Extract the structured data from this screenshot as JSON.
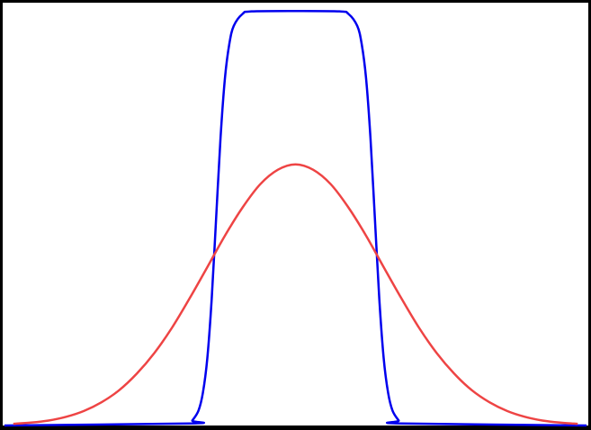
{
  "chart_data": {
    "type": "line",
    "title": "",
    "xlabel": "",
    "ylabel": "",
    "xlim": [
      -3.32,
      3.32
    ],
    "ylim": [
      0,
      1.02
    ],
    "grid": false,
    "axes_visible": false,
    "legend": "none",
    "series": [
      {
        "color": "#0000ee",
        "x": [
          -3.3,
          -1.2,
          -1.17,
          -1.1,
          -1.05,
          -1.0,
          -0.95,
          -0.9,
          -0.85,
          -0.8,
          -0.75,
          -0.7,
          -0.6,
          -0.5,
          0,
          0.5,
          0.6,
          0.7,
          0.75,
          0.8,
          0.85,
          0.9,
          0.95,
          1.0,
          1.05,
          1.1,
          1.17,
          1.2,
          3.3
        ],
        "y": [
          0,
          0.005,
          0.012,
          0.036,
          0.079,
          0.162,
          0.306,
          0.5,
          0.694,
          0.838,
          0.921,
          0.964,
          0.993,
          0.999,
          1.0,
          0.999,
          0.993,
          0.964,
          0.921,
          0.838,
          0.694,
          0.5,
          0.306,
          0.162,
          0.079,
          0.036,
          0.012,
          0.005,
          0
        ]
      },
      {
        "color": "#ee4444",
        "x": [
          -3.2,
          -3.0,
          -2.8,
          -2.6,
          -2.4,
          -2.2,
          -2.0,
          -1.8,
          -1.6,
          -1.4,
          -1.2,
          -1.0,
          -0.8,
          -0.6,
          -0.4,
          -0.2,
          0,
          0.2,
          0.4,
          0.6,
          0.8,
          1.0,
          1.2,
          1.4,
          1.6,
          1.8,
          2.0,
          2.2,
          2.4,
          2.6,
          2.8,
          3.0,
          3.2
        ],
        "y": [
          0.004,
          0.007,
          0.012,
          0.021,
          0.035,
          0.056,
          0.085,
          0.125,
          0.175,
          0.236,
          0.307,
          0.382,
          0.458,
          0.526,
          0.582,
          0.617,
          0.63,
          0.617,
          0.582,
          0.526,
          0.458,
          0.382,
          0.307,
          0.236,
          0.175,
          0.125,
          0.085,
          0.056,
          0.035,
          0.021,
          0.012,
          0.007,
          0.004
        ]
      }
    ]
  }
}
